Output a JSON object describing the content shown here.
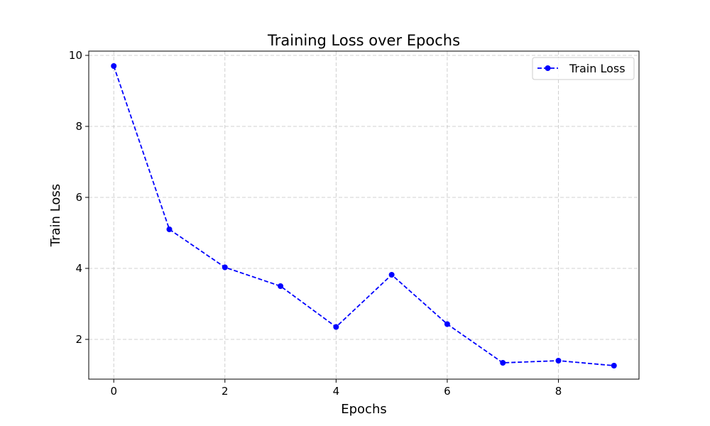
{
  "chart_data": {
    "type": "line",
    "title": "Training Loss over Epochs",
    "xlabel": "Epochs",
    "ylabel": "Train Loss",
    "xlim": [
      -0.45,
      9.45
    ],
    "ylim": [
      0.88,
      10.12
    ],
    "xticks": [
      0,
      2,
      4,
      6,
      8
    ],
    "yticks": [
      2,
      4,
      6,
      8,
      10
    ],
    "grid": true,
    "legend_position": "top-right",
    "series": [
      {
        "name": "Train Loss",
        "color": "#0000ff",
        "line_style": "dashed",
        "marker": "circle",
        "x": [
          0,
          1,
          2,
          3,
          4,
          5,
          6,
          7,
          8,
          9
        ],
        "y": [
          9.7,
          5.1,
          4.03,
          3.5,
          2.35,
          3.82,
          2.43,
          1.34,
          1.4,
          1.26
        ]
      }
    ]
  }
}
